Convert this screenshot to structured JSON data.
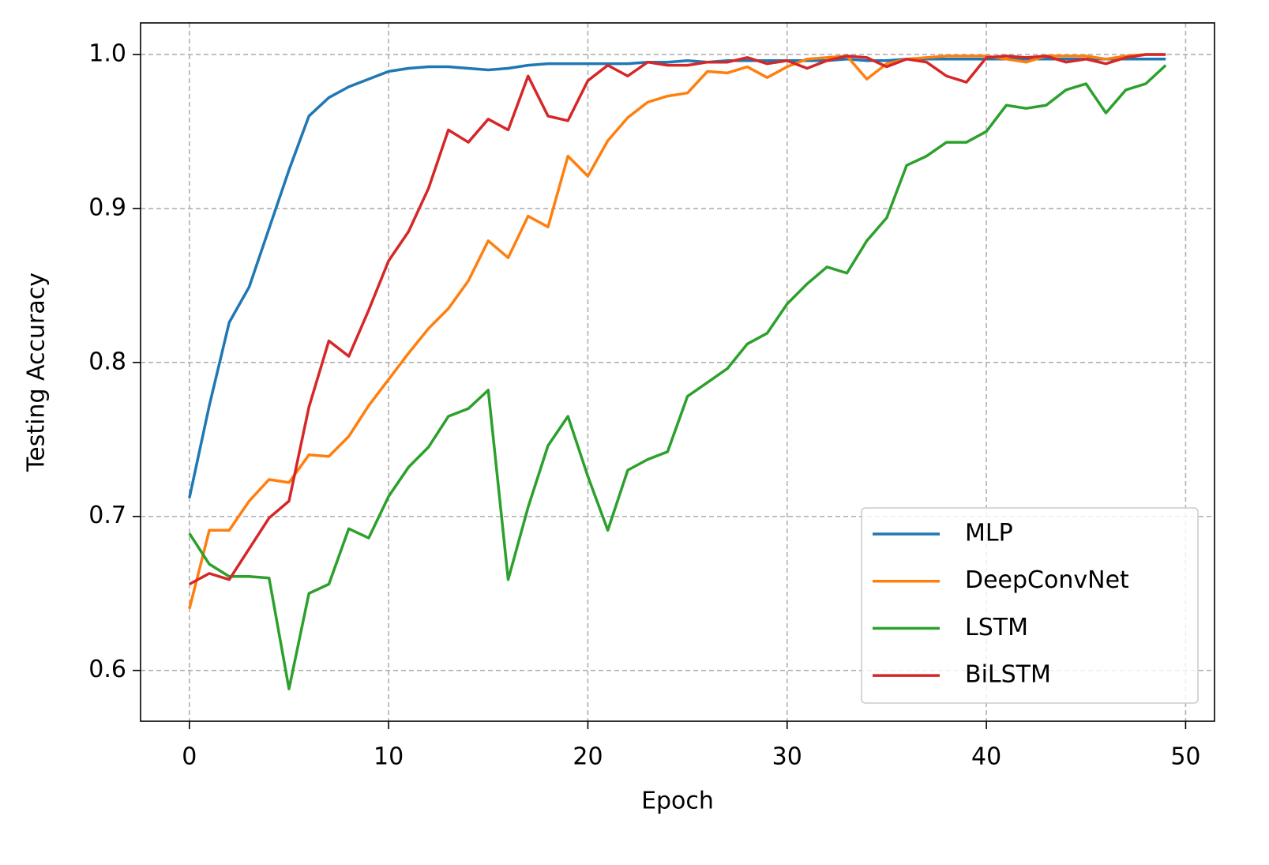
{
  "chart_data": {
    "type": "line",
    "x_label": "Epoch",
    "y_label": "Testing Accuracy",
    "x": [
      0,
      1,
      2,
      3,
      4,
      5,
      6,
      7,
      8,
      9,
      10,
      11,
      12,
      13,
      14,
      15,
      16,
      17,
      18,
      19,
      20,
      21,
      22,
      23,
      24,
      25,
      26,
      27,
      28,
      29,
      30,
      31,
      32,
      33,
      34,
      35,
      36,
      37,
      38,
      39,
      40,
      41,
      42,
      43,
      44,
      45,
      46,
      47,
      48,
      49
    ],
    "series": [
      {
        "name": "MLP",
        "color": "#1f77b4",
        "values": [
          0.712,
          0.772,
          0.826,
          0.849,
          0.887,
          0.925,
          0.96,
          0.972,
          0.979,
          0.984,
          0.989,
          0.991,
          0.992,
          0.992,
          0.991,
          0.99,
          0.991,
          0.993,
          0.994,
          0.994,
          0.994,
          0.994,
          0.994,
          0.995,
          0.995,
          0.996,
          0.995,
          0.996,
          0.996,
          0.996,
          0.996,
          0.996,
          0.996,
          0.997,
          0.996,
          0.996,
          0.997,
          0.997,
          0.997,
          0.997,
          0.997,
          0.997,
          0.997,
          0.997,
          0.997,
          0.997,
          0.997,
          0.997,
          0.997,
          0.997
        ]
      },
      {
        "name": "DeepConvNet",
        "color": "#ff7f0e",
        "values": [
          0.64,
          0.691,
          0.691,
          0.71,
          0.724,
          0.722,
          0.74,
          0.739,
          0.752,
          0.772,
          0.789,
          0.806,
          0.822,
          0.835,
          0.853,
          0.879,
          0.868,
          0.895,
          0.888,
          0.934,
          0.921,
          0.944,
          0.959,
          0.969,
          0.973,
          0.975,
          0.989,
          0.988,
          0.992,
          0.985,
          0.992,
          0.997,
          0.998,
          0.999,
          0.984,
          0.994,
          0.997,
          0.998,
          0.999,
          0.999,
          0.999,
          0.997,
          0.995,
          0.999,
          0.999,
          0.999,
          0.997,
          0.999,
          1.0,
          1.0
        ]
      },
      {
        "name": "LSTM",
        "color": "#2ca02c",
        "values": [
          0.689,
          0.669,
          0.661,
          0.661,
          0.66,
          0.588,
          0.65,
          0.656,
          0.692,
          0.686,
          0.713,
          0.732,
          0.745,
          0.765,
          0.77,
          0.782,
          0.659,
          0.706,
          0.746,
          0.765,
          0.726,
          0.691,
          0.73,
          0.737,
          0.742,
          0.778,
          0.787,
          0.796,
          0.812,
          0.819,
          0.838,
          0.851,
          0.862,
          0.858,
          0.879,
          0.894,
          0.928,
          0.934,
          0.943,
          0.943,
          0.95,
          0.967,
          0.965,
          0.967,
          0.977,
          0.981,
          0.962,
          0.977,
          0.981,
          0.993
        ]
      },
      {
        "name": "BiLSTM",
        "color": "#d62728",
        "values": [
          0.656,
          0.663,
          0.659,
          0.679,
          0.699,
          0.71,
          0.771,
          0.814,
          0.804,
          0.834,
          0.866,
          0.885,
          0.913,
          0.951,
          0.943,
          0.958,
          0.951,
          0.986,
          0.96,
          0.957,
          0.983,
          0.993,
          0.986,
          0.995,
          0.993,
          0.993,
          0.995,
          0.995,
          0.998,
          0.994,
          0.996,
          0.991,
          0.996,
          0.999,
          0.998,
          0.992,
          0.997,
          0.995,
          0.986,
          0.982,
          0.998,
          0.999,
          0.998,
          0.999,
          0.995,
          0.997,
          0.994,
          0.998,
          1.0,
          1.0
        ]
      }
    ],
    "xlim": [
      -2.45,
      51.45
    ],
    "ylim": [
      0.567,
      1.0205
    ],
    "xticks": [
      0,
      10,
      20,
      30,
      40,
      50
    ],
    "yticks": [
      0.6,
      0.7,
      0.8,
      0.9,
      {
        "value": 1,
        "label": "1.0"
      }
    ],
    "grid": true,
    "legend": "lower right"
  }
}
